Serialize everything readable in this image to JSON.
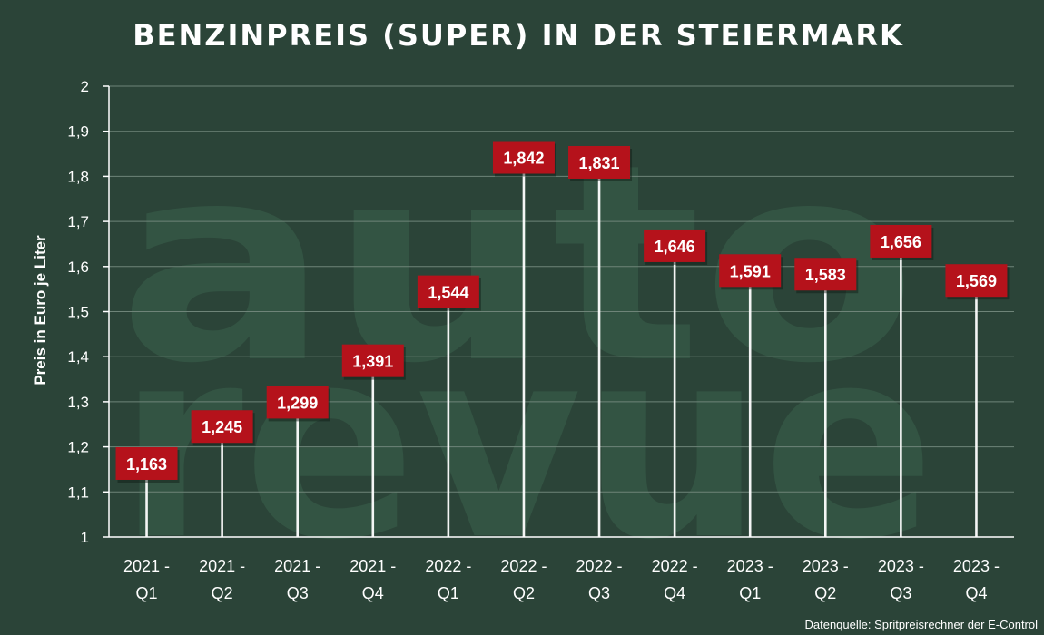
{
  "title": "BENZINPREIS (SUPER) IN DER STEIERMARK",
  "watermark": [
    "auto",
    "revue"
  ],
  "source": "Datenquelle: Spritpreisrechner der E-Control",
  "colors": {
    "background": "#2b4438",
    "label_box": "#b5121b",
    "text": "#ffffff",
    "watermark": "#335443",
    "grid": "#6e8478"
  },
  "chart_data": {
    "type": "bar",
    "title": "BENZINPREIS (SUPER) IN DER STEIERMARK",
    "ylabel": "Preis in Euro je Liter",
    "xlabel": "",
    "ylim": [
      1,
      2
    ],
    "yticks": [
      "1",
      "1,1",
      "1,2",
      "1,3",
      "1,4",
      "1,5",
      "1,6",
      "1,7",
      "1,8",
      "1,9",
      "2"
    ],
    "ytick_values": [
      1,
      1.1,
      1.2,
      1.3,
      1.4,
      1.5,
      1.6,
      1.7,
      1.8,
      1.9,
      2
    ],
    "grid": true,
    "categories": [
      [
        "2021 -",
        "Q1"
      ],
      [
        "2021 -",
        "Q2"
      ],
      [
        "2021 -",
        "Q3"
      ],
      [
        "2021 -",
        "Q4"
      ],
      [
        "2022 -",
        "Q1"
      ],
      [
        "2022 -",
        "Q2"
      ],
      [
        "2022 -",
        "Q3"
      ],
      [
        "2022 -",
        "Q4"
      ],
      [
        "2023 -",
        "Q1"
      ],
      [
        "2023 -",
        "Q2"
      ],
      [
        "2023 -",
        "Q3"
      ],
      [
        "2023 -",
        "Q4"
      ]
    ],
    "values": [
      1.163,
      1.245,
      1.299,
      1.391,
      1.544,
      1.842,
      1.831,
      1.646,
      1.591,
      1.583,
      1.656,
      1.569
    ],
    "value_labels": [
      "1,163",
      "1,245",
      "1,299",
      "1,391",
      "1,544",
      "1,842",
      "1,831",
      "1,646",
      "1,591",
      "1,583",
      "1,656",
      "1,569"
    ]
  }
}
